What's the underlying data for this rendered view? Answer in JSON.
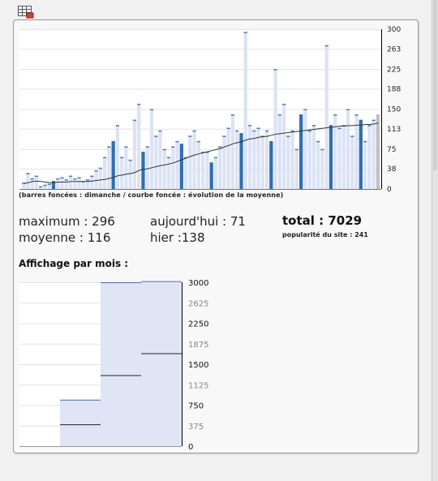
{
  "daily_chart": {
    "legend": "(barres foncées : dimanche / courbe foncée : évolution de la moyenne)",
    "y_ticks": [
      "300",
      "263",
      "225",
      "188",
      "150",
      "113",
      "75",
      "38",
      "0"
    ]
  },
  "stats": {
    "maximum": "maximum : 296",
    "moyenne": "moyenne : 116",
    "today": "aujourd'hui : 71",
    "yesterday": "hier :138",
    "total": "total : 7029",
    "popularity": "popularité du site : 241"
  },
  "monthly": {
    "title": "Affichage par mois :",
    "y_ticks": [
      "3000",
      "2625",
      "2250",
      "1875",
      "1500",
      "1125",
      "750",
      "375",
      "0"
    ]
  },
  "chart_data": [
    {
      "type": "bar",
      "ylim": [
        0,
        300
      ],
      "values": [
        12,
        30,
        20,
        25,
        5,
        8,
        10,
        15,
        20,
        22,
        18,
        25,
        20,
        22,
        15,
        18,
        25,
        35,
        40,
        60,
        80,
        90,
        120,
        60,
        80,
        55,
        130,
        160,
        70,
        80,
        150,
        100,
        110,
        75,
        60,
        80,
        90,
        85,
        60,
        100,
        110,
        90,
        70,
        70,
        50,
        60,
        80,
        100,
        115,
        140,
        110,
        105,
        295,
        120,
        110,
        115,
        100,
        110,
        90,
        225,
        140,
        160,
        100,
        110,
        75,
        140,
        150,
        110,
        120,
        90,
        75,
        270,
        120,
        140,
        115,
        120,
        150,
        100,
        140,
        130,
        90,
        120,
        130,
        140
      ],
      "sundays": [
        7,
        21,
        28,
        37,
        44,
        51,
        58,
        65,
        72,
        79
      ],
      "average": [
        10,
        12,
        14,
        15,
        14,
        13,
        12,
        12,
        13,
        13,
        13,
        14,
        14,
        14,
        14,
        14,
        15,
        16,
        17,
        18,
        20,
        22,
        25,
        26,
        28,
        29,
        31,
        35,
        37,
        38,
        40,
        42,
        44,
        45,
        47,
        49,
        52,
        55,
        58,
        61,
        64,
        66,
        68,
        70,
        72,
        74,
        76,
        79,
        82,
        85,
        87,
        89,
        92,
        94,
        95,
        97,
        98,
        99,
        101,
        103,
        104,
        105,
        106,
        107,
        108,
        109,
        110,
        111,
        112,
        113,
        114,
        115,
        116,
        117,
        118,
        118,
        119,
        119,
        120,
        120,
        121,
        121,
        122,
        124
      ],
      "avg_overlay": [
        0,
        12,
        10,
        15,
        5,
        10,
        10,
        14,
        18,
        20,
        16,
        20,
        18,
        20,
        15,
        17,
        20,
        28,
        30,
        45,
        50,
        60,
        85,
        45,
        60,
        45,
        90,
        110,
        55,
        65,
        100,
        75,
        80,
        60,
        55,
        65,
        70,
        70,
        55,
        75,
        80,
        70,
        60,
        65,
        45,
        55,
        70,
        85,
        95,
        110,
        95,
        90,
        220,
        100,
        95,
        100,
        85,
        90,
        80,
        175,
        115,
        125,
        85,
        95,
        65,
        110,
        120,
        95,
        100,
        80,
        65,
        200,
        100,
        115,
        100,
        105,
        120,
        90,
        115,
        110,
        80,
        100,
        110,
        115
      ]
    },
    {
      "type": "bar",
      "ylim": [
        0,
        3000
      ],
      "categories": [
        "",
        "",
        "",
        ""
      ],
      "values": [
        0,
        850,
        3000,
        3020
      ],
      "markers": [
        0,
        400,
        1300,
        1700
      ]
    }
  ]
}
